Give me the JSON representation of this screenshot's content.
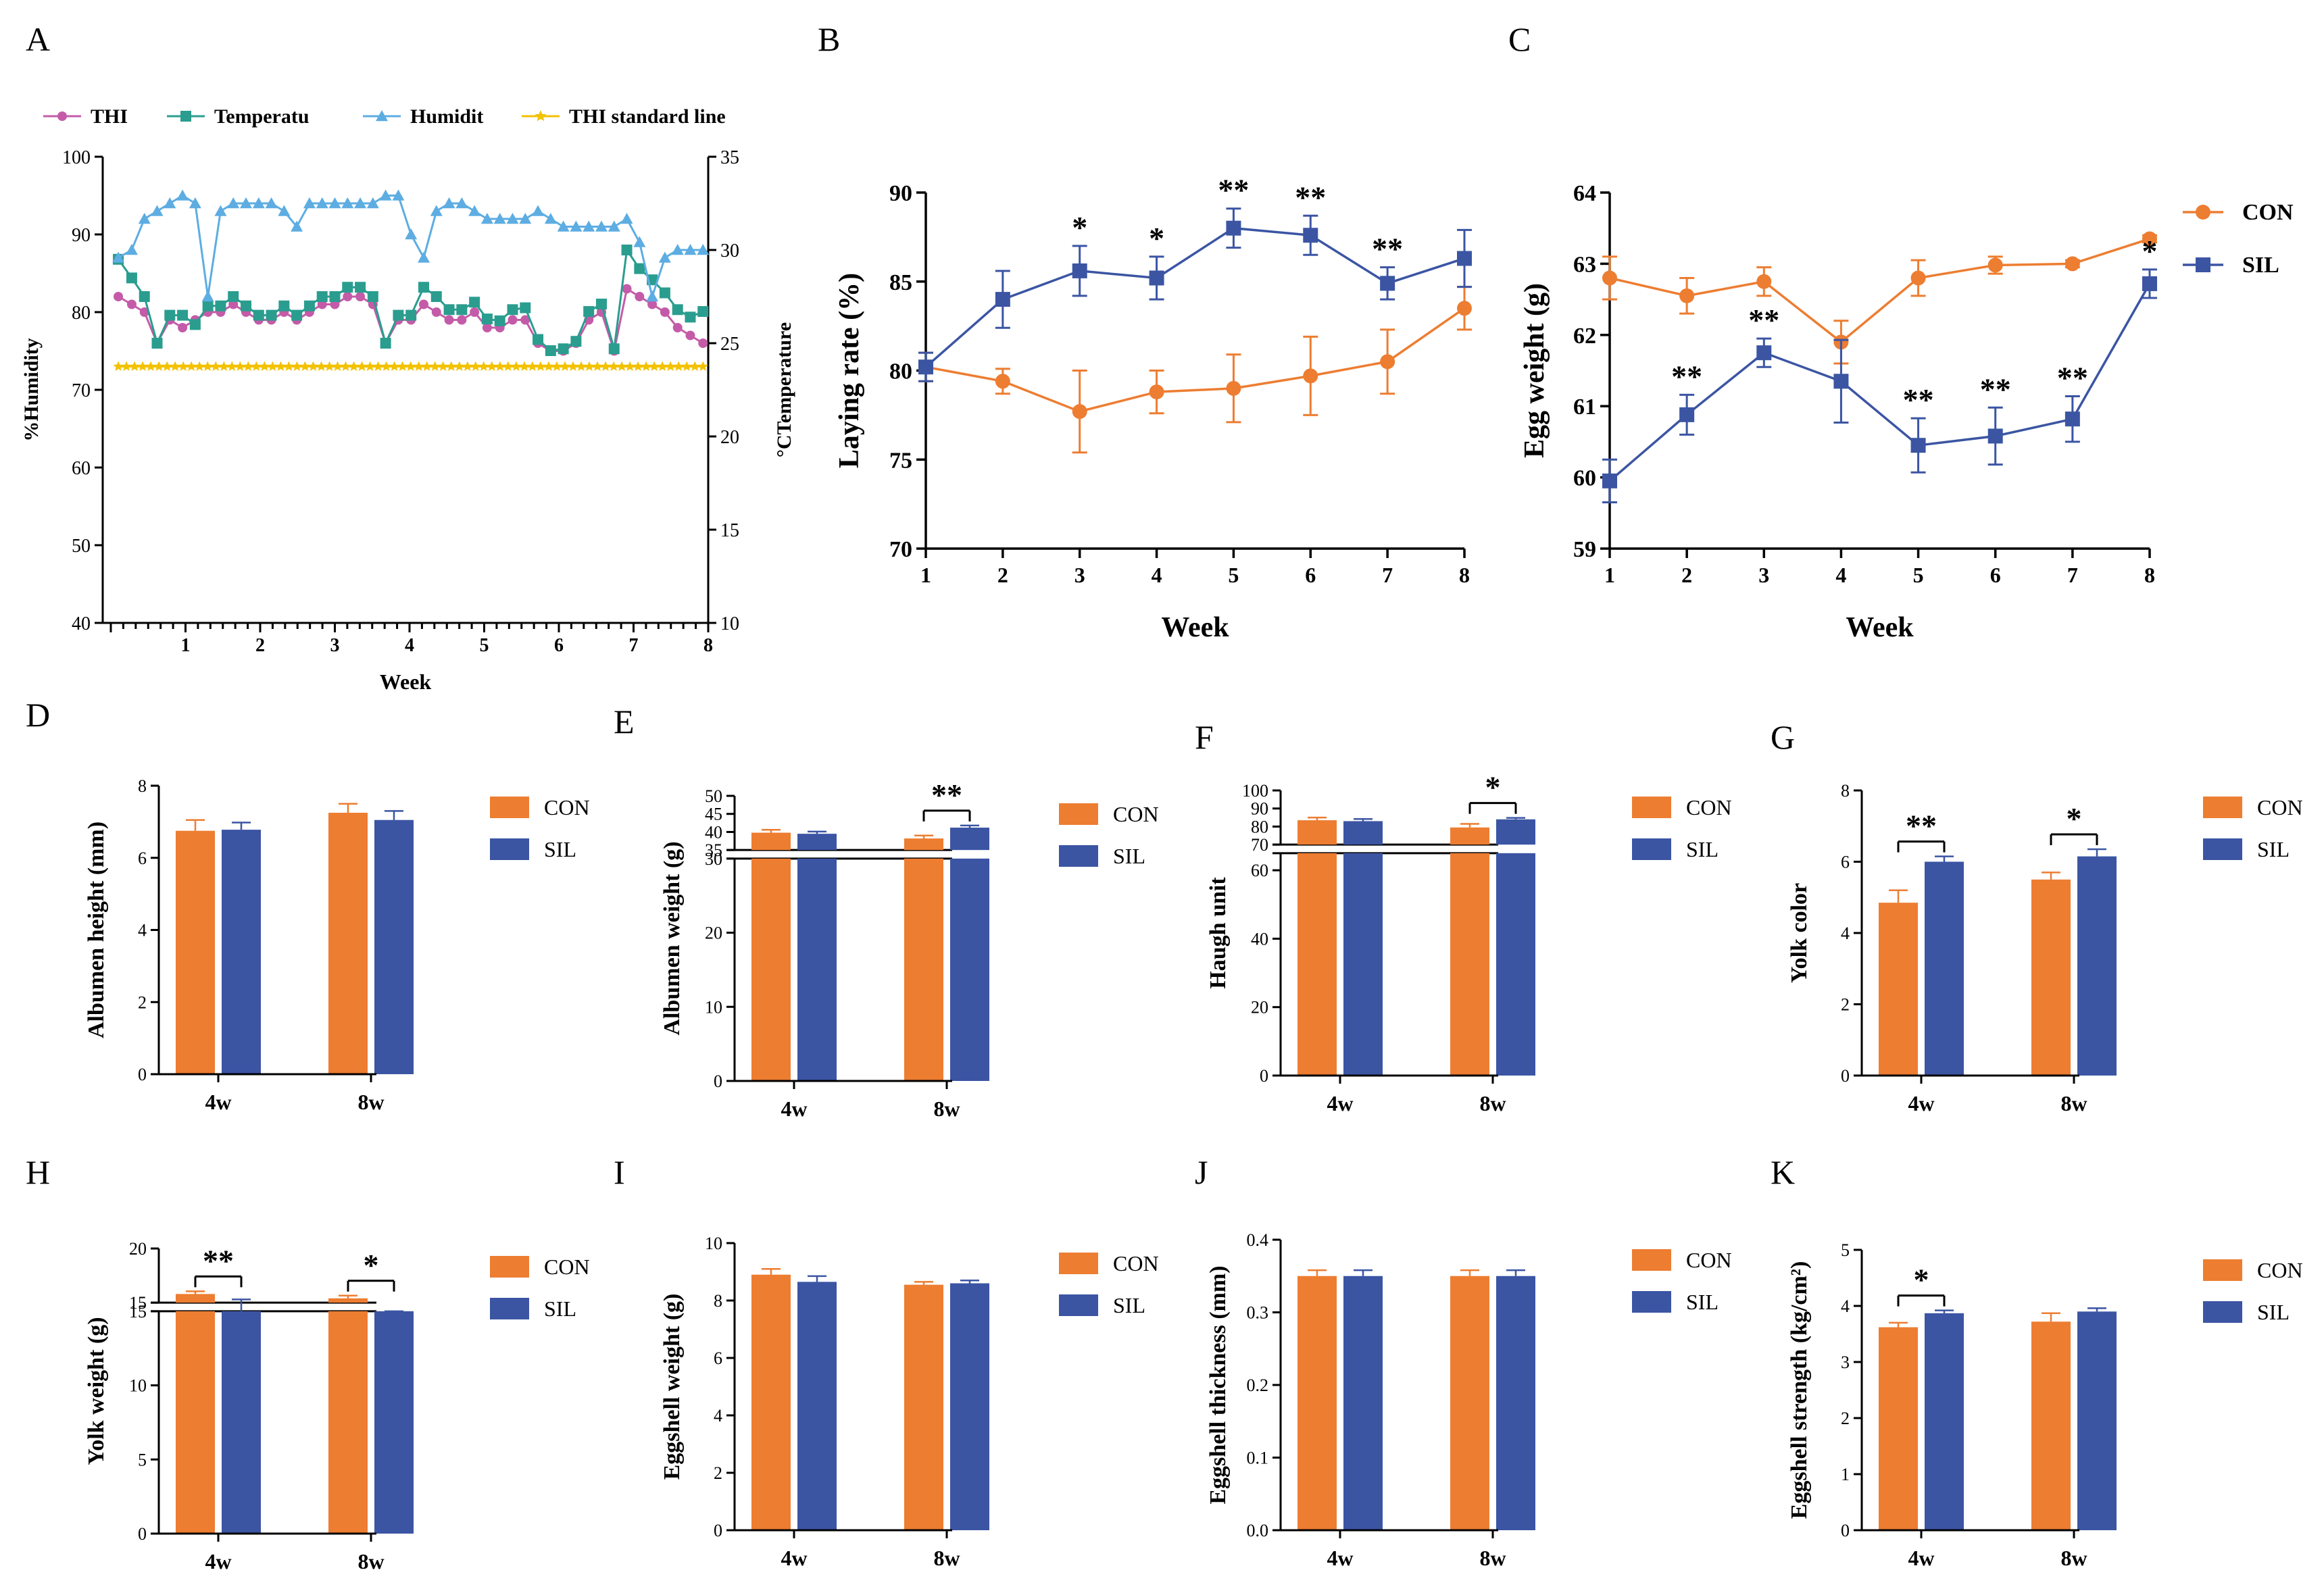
{
  "colors": {
    "con": "#ED7D31",
    "sil": "#3B55A3",
    "thi": "#C45BA8",
    "temperature": "#2A9D8F",
    "humidity": "#5DADE2",
    "thi_standard": "#F2C200"
  },
  "chart_data": [
    {
      "panel": "A",
      "type": "line",
      "title": "",
      "xlabel": "Week",
      "ylabel": "%Humidity",
      "y2label": "°CTemperature",
      "ylim": [
        40,
        100
      ],
      "y2lim": [
        10,
        35
      ],
      "xlim": [
        0,
        8
      ],
      "yticks": [
        "40",
        "50",
        "60",
        "70",
        "80",
        "90",
        "100"
      ],
      "y2ticks": [
        "10",
        "15",
        "20",
        "25",
        "30",
        "35"
      ],
      "xticks": [
        "1",
        "2",
        "3",
        "4",
        "5",
        "6",
        "7",
        "8"
      ],
      "legend": [
        "THI",
        "Temperatu",
        "Humidit",
        "THI standard line"
      ],
      "x": [
        0.1,
        0.28,
        0.45,
        0.62,
        0.79,
        0.96,
        1.13,
        1.3,
        1.47,
        1.64,
        1.81,
        1.98,
        2.15,
        2.32,
        2.49,
        2.66,
        2.83,
        3.0,
        3.17,
        3.34,
        3.51,
        3.68,
        3.85,
        4.02,
        4.19,
        4.36,
        4.53,
        4.7,
        4.87,
        5.04,
        5.21,
        5.38,
        5.55,
        5.72,
        5.89,
        6.06,
        6.23,
        6.4,
        6.57,
        6.74,
        6.91,
        7.08,
        7.25,
        7.42,
        7.59,
        7.76,
        7.93
      ],
      "series": [
        {
          "name": "THI",
          "axis": "left",
          "values": [
            82,
            81,
            80,
            76,
            79,
            78,
            79,
            80,
            80,
            81,
            80,
            79,
            79,
            80,
            79,
            80,
            81,
            81,
            82,
            82,
            81,
            76,
            79,
            79,
            81,
            80,
            79,
            79,
            80,
            78,
            78,
            79,
            79,
            76,
            75,
            75,
            76,
            79,
            80,
            75,
            83,
            82,
            81,
            80,
            78,
            77,
            76
          ]
        },
        {
          "name": "Temperatu",
          "axis": "right",
          "values": [
            29.5,
            28.5,
            27.5,
            25.0,
            26.5,
            26.5,
            26.0,
            27.0,
            27.0,
            27.5,
            27.0,
            26.5,
            26.5,
            27.0,
            26.5,
            27.0,
            27.5,
            27.5,
            28.0,
            28.0,
            27.5,
            25.0,
            26.5,
            26.5,
            28.0,
            27.5,
            26.8,
            26.8,
            27.2,
            26.3,
            26.2,
            26.8,
            26.9,
            25.2,
            24.6,
            24.7,
            25.1,
            26.7,
            27.1,
            24.7,
            30.0,
            29.0,
            28.4,
            27.7,
            26.8,
            26.4,
            26.7
          ]
        },
        {
          "name": "Humidit",
          "axis": "left",
          "values": [
            87,
            88,
            92,
            93,
            94,
            95,
            94,
            82,
            93,
            94,
            94,
            94,
            94,
            93,
            91,
            94,
            94,
            94,
            94,
            94,
            94,
            95,
            95,
            90,
            87,
            93,
            94,
            94,
            93,
            92,
            92,
            92,
            92,
            93,
            92,
            91,
            91,
            91,
            91,
            91,
            92,
            89,
            82,
            87,
            88,
            88,
            88
          ]
        },
        {
          "name": "THI standard line",
          "axis": "left",
          "constant": 73
        }
      ]
    },
    {
      "panel": "B",
      "type": "line",
      "title": "",
      "xlabel": "Week",
      "ylabel": "Laying rate (%)",
      "ylim": [
        70,
        90
      ],
      "yticks": [
        "70",
        "75",
        "80",
        "85",
        "90"
      ],
      "categories": [
        "1",
        "2",
        "3",
        "4",
        "5",
        "6",
        "7",
        "8"
      ],
      "series": [
        {
          "name": "CON",
          "values": [
            80.2,
            79.4,
            77.7,
            78.8,
            79.0,
            79.7,
            80.5,
            83.5
          ],
          "errors": [
            0.8,
            0.7,
            2.3,
            1.2,
            1.9,
            2.2,
            1.8,
            1.2
          ]
        },
        {
          "name": "SIL",
          "values": [
            80.2,
            84.0,
            85.6,
            85.2,
            88.0,
            87.6,
            84.9,
            86.3
          ],
          "errors": [
            0.8,
            1.6,
            1.4,
            1.2,
            1.1,
            1.1,
            0.9,
            1.6
          ]
        }
      ],
      "significance": [
        "",
        "",
        "*",
        "*",
        "**",
        "**",
        "**",
        ""
      ]
    },
    {
      "panel": "C",
      "type": "line",
      "title": "",
      "xlabel": "Week",
      "ylabel": "Egg weight (g)",
      "ylim": [
        59,
        64
      ],
      "yticks": [
        "59",
        "60",
        "61",
        "62",
        "63",
        "64"
      ],
      "categories": [
        "1",
        "2",
        "3",
        "4",
        "5",
        "6",
        "7",
        "8"
      ],
      "legend": [
        "CON",
        "SIL"
      ],
      "series": [
        {
          "name": "CON",
          "values": [
            62.8,
            62.55,
            62.75,
            61.9,
            62.8,
            62.98,
            63.0,
            63.35
          ],
          "errors": [
            0.3,
            0.25,
            0.2,
            0.3,
            0.25,
            0.12,
            0.05,
            0.05
          ]
        },
        {
          "name": "SIL",
          "values": [
            59.95,
            60.88,
            61.75,
            61.35,
            60.45,
            60.58,
            60.82,
            62.72
          ],
          "errors": [
            0.3,
            0.28,
            0.2,
            0.58,
            0.38,
            0.4,
            0.32,
            0.2
          ]
        }
      ],
      "significance": [
        "",
        "**",
        "**",
        "",
        "**",
        "**",
        "**",
        "*"
      ]
    },
    {
      "panel": "D",
      "type": "bar",
      "ylabel": "Albumen height (mm)",
      "ylim": [
        0,
        8
      ],
      "yticks": [
        "0",
        "2",
        "4",
        "6",
        "8"
      ],
      "categories": [
        "4w",
        "8w"
      ],
      "legend": [
        "CON",
        "SIL"
      ],
      "series": [
        {
          "name": "CON",
          "values": [
            6.75,
            7.25
          ],
          "errors": [
            0.3,
            0.25
          ]
        },
        {
          "name": "SIL",
          "values": [
            6.78,
            7.05
          ],
          "errors": [
            0.2,
            0.25
          ]
        }
      ],
      "significance": []
    },
    {
      "panel": "E",
      "type": "bar",
      "ylabel": "Albumen weight (g)",
      "ylim": [
        0,
        50
      ],
      "yticks": [
        "0",
        "10",
        "20",
        "30",
        "35",
        "40",
        "45",
        "50"
      ],
      "axis_break": [
        30,
        35
      ],
      "categories": [
        "4w",
        "8w"
      ],
      "legend": [
        "CON",
        "SIL"
      ],
      "series": [
        {
          "name": "CON",
          "values": [
            39.8,
            38.2
          ],
          "errors": [
            0.8,
            0.8
          ]
        },
        {
          "name": "SIL",
          "values": [
            39.5,
            41.2
          ],
          "errors": [
            0.6,
            0.6
          ]
        }
      ],
      "significance": [
        {
          "category": "8w",
          "label": "**"
        }
      ]
    },
    {
      "panel": "F",
      "type": "bar",
      "ylabel": "Haugh unit",
      "ylim": [
        0,
        100
      ],
      "yticks": [
        "0",
        "20",
        "40",
        "60",
        "70",
        "80",
        "90",
        "100"
      ],
      "axis_break": [
        65,
        70
      ],
      "categories": [
        "4w",
        "8w"
      ],
      "legend": [
        "CON",
        "SIL"
      ],
      "series": [
        {
          "name": "CON",
          "values": [
            83.5,
            79.5
          ],
          "errors": [
            1.5,
            2.0
          ]
        },
        {
          "name": "SIL",
          "values": [
            83.0,
            84.0
          ],
          "errors": [
            1.2,
            0.8
          ]
        }
      ],
      "significance": [
        {
          "category": "8w",
          "label": "*"
        }
      ]
    },
    {
      "panel": "G",
      "type": "bar",
      "ylabel": "Yolk color",
      "ylim": [
        0,
        8
      ],
      "yticks": [
        "0",
        "2",
        "4",
        "6",
        "8"
      ],
      "categories": [
        "4w",
        "8w"
      ],
      "legend": [
        "CON",
        "SIL"
      ],
      "series": [
        {
          "name": "CON",
          "values": [
            4.85,
            5.5
          ],
          "errors": [
            0.35,
            0.2
          ]
        },
        {
          "name": "SIL",
          "values": [
            6.0,
            6.15
          ],
          "errors": [
            0.15,
            0.2
          ]
        }
      ],
      "significance": [
        {
          "category": "4w",
          "label": "**"
        },
        {
          "category": "8w",
          "label": "*"
        }
      ]
    },
    {
      "panel": "H",
      "type": "bar",
      "ylabel": "Yolk weight (g)",
      "ylim": [
        0,
        20
      ],
      "yticks": [
        "0",
        "5",
        "10",
        "15",
        "15",
        "20"
      ],
      "axis_break": [
        15,
        15
      ],
      "categories": [
        "4w",
        "8w"
      ],
      "legend": [
        "CON",
        "SIL"
      ],
      "series": [
        {
          "name": "CON",
          "values": [
            15.8,
            15.4
          ],
          "errors": [
            0.25,
            0.25
          ]
        },
        {
          "name": "SIL",
          "values": [
            15.0,
            14.8
          ],
          "errors": [
            0.3,
            0.2
          ]
        }
      ],
      "significance": [
        {
          "category": "4w",
          "label": "**"
        },
        {
          "category": "8w",
          "label": "*"
        }
      ]
    },
    {
      "panel": "I",
      "type": "bar",
      "ylabel": "Eggshell weight (g)",
      "ylim": [
        0,
        10
      ],
      "yticks": [
        "0",
        "2",
        "4",
        "6",
        "8",
        "10"
      ],
      "categories": [
        "4w",
        "8w"
      ],
      "legend": [
        "CON",
        "SIL"
      ],
      "series": [
        {
          "name": "CON",
          "values": [
            8.9,
            8.55
          ],
          "errors": [
            0.2,
            0.1
          ]
        },
        {
          "name": "SIL",
          "values": [
            8.65,
            8.6
          ],
          "errors": [
            0.2,
            0.1
          ]
        }
      ],
      "significance": []
    },
    {
      "panel": "J",
      "type": "bar",
      "ylabel": "Eggshell thickness (mm)",
      "ylim": [
        0,
        0.4
      ],
      "yticks": [
        "0.0",
        "0.1",
        "0.2",
        "0.3",
        "0.4"
      ],
      "categories": [
        "4w",
        "8w"
      ],
      "legend": [
        "CON",
        "SIL"
      ],
      "series": [
        {
          "name": "CON",
          "values": [
            0.35,
            0.35
          ],
          "errors": [
            0.008,
            0.008
          ]
        },
        {
          "name": "SIL",
          "values": [
            0.35,
            0.35
          ],
          "errors": [
            0.008,
            0.008
          ]
        }
      ],
      "significance": []
    },
    {
      "panel": "K",
      "type": "bar",
      "ylabel": "Eggshell strength (kg/cm²)",
      "ylim": [
        0,
        5
      ],
      "yticks": [
        "0",
        "1",
        "2",
        "3",
        "4",
        "5"
      ],
      "categories": [
        "4w",
        "8w"
      ],
      "legend": [
        "CON",
        "SIL"
      ],
      "series": [
        {
          "name": "CON",
          "values": [
            3.62,
            3.72
          ],
          "errors": [
            0.08,
            0.15
          ]
        },
        {
          "name": "SIL",
          "values": [
            3.87,
            3.9
          ],
          "errors": [
            0.05,
            0.06
          ]
        }
      ],
      "significance": [
        {
          "category": "4w",
          "label": "*"
        }
      ]
    }
  ]
}
